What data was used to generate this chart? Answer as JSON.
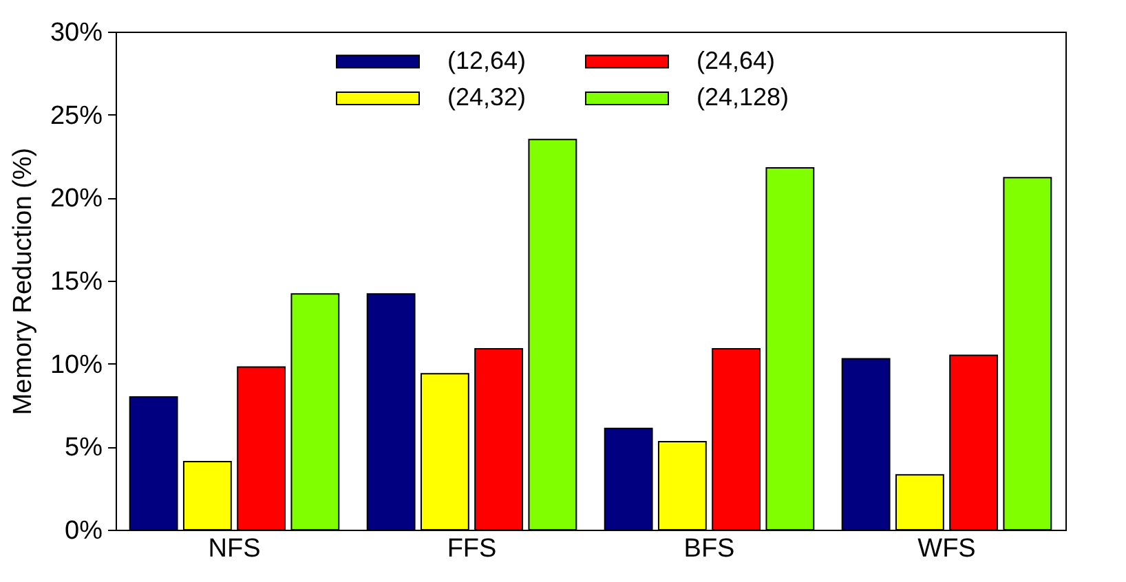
{
  "chart_data": {
    "type": "bar",
    "ylabel": "Memory Reduction (%)",
    "categories": [
      "NFS",
      "FFS",
      "BFS",
      "WFS"
    ],
    "series": [
      {
        "name": "(12,64)",
        "color": "#000080",
        "values": [
          8.0,
          14.2,
          6.1,
          10.3
        ]
      },
      {
        "name": "(24,32)",
        "color": "#ffff00",
        "values": [
          4.1,
          9.4,
          5.3,
          3.3
        ]
      },
      {
        "name": "(24,64)",
        "color": "#ff0000",
        "values": [
          9.8,
          10.9,
          10.9,
          10.5
        ]
      },
      {
        "name": "(24,128)",
        "color": "#80ff00",
        "values": [
          14.2,
          23.5,
          21.8,
          21.2
        ]
      }
    ],
    "ylim": [
      0,
      30
    ],
    "yticks": [
      {
        "value": 0,
        "label": "0%"
      },
      {
        "value": 5,
        "label": "5%"
      },
      {
        "value": 10,
        "label": "10%"
      },
      {
        "value": 15,
        "label": "15%"
      },
      {
        "value": 20,
        "label": "20%"
      },
      {
        "value": 25,
        "label": "25%"
      },
      {
        "value": 30,
        "label": "30%"
      }
    ],
    "grid": false,
    "legend": "top"
  }
}
